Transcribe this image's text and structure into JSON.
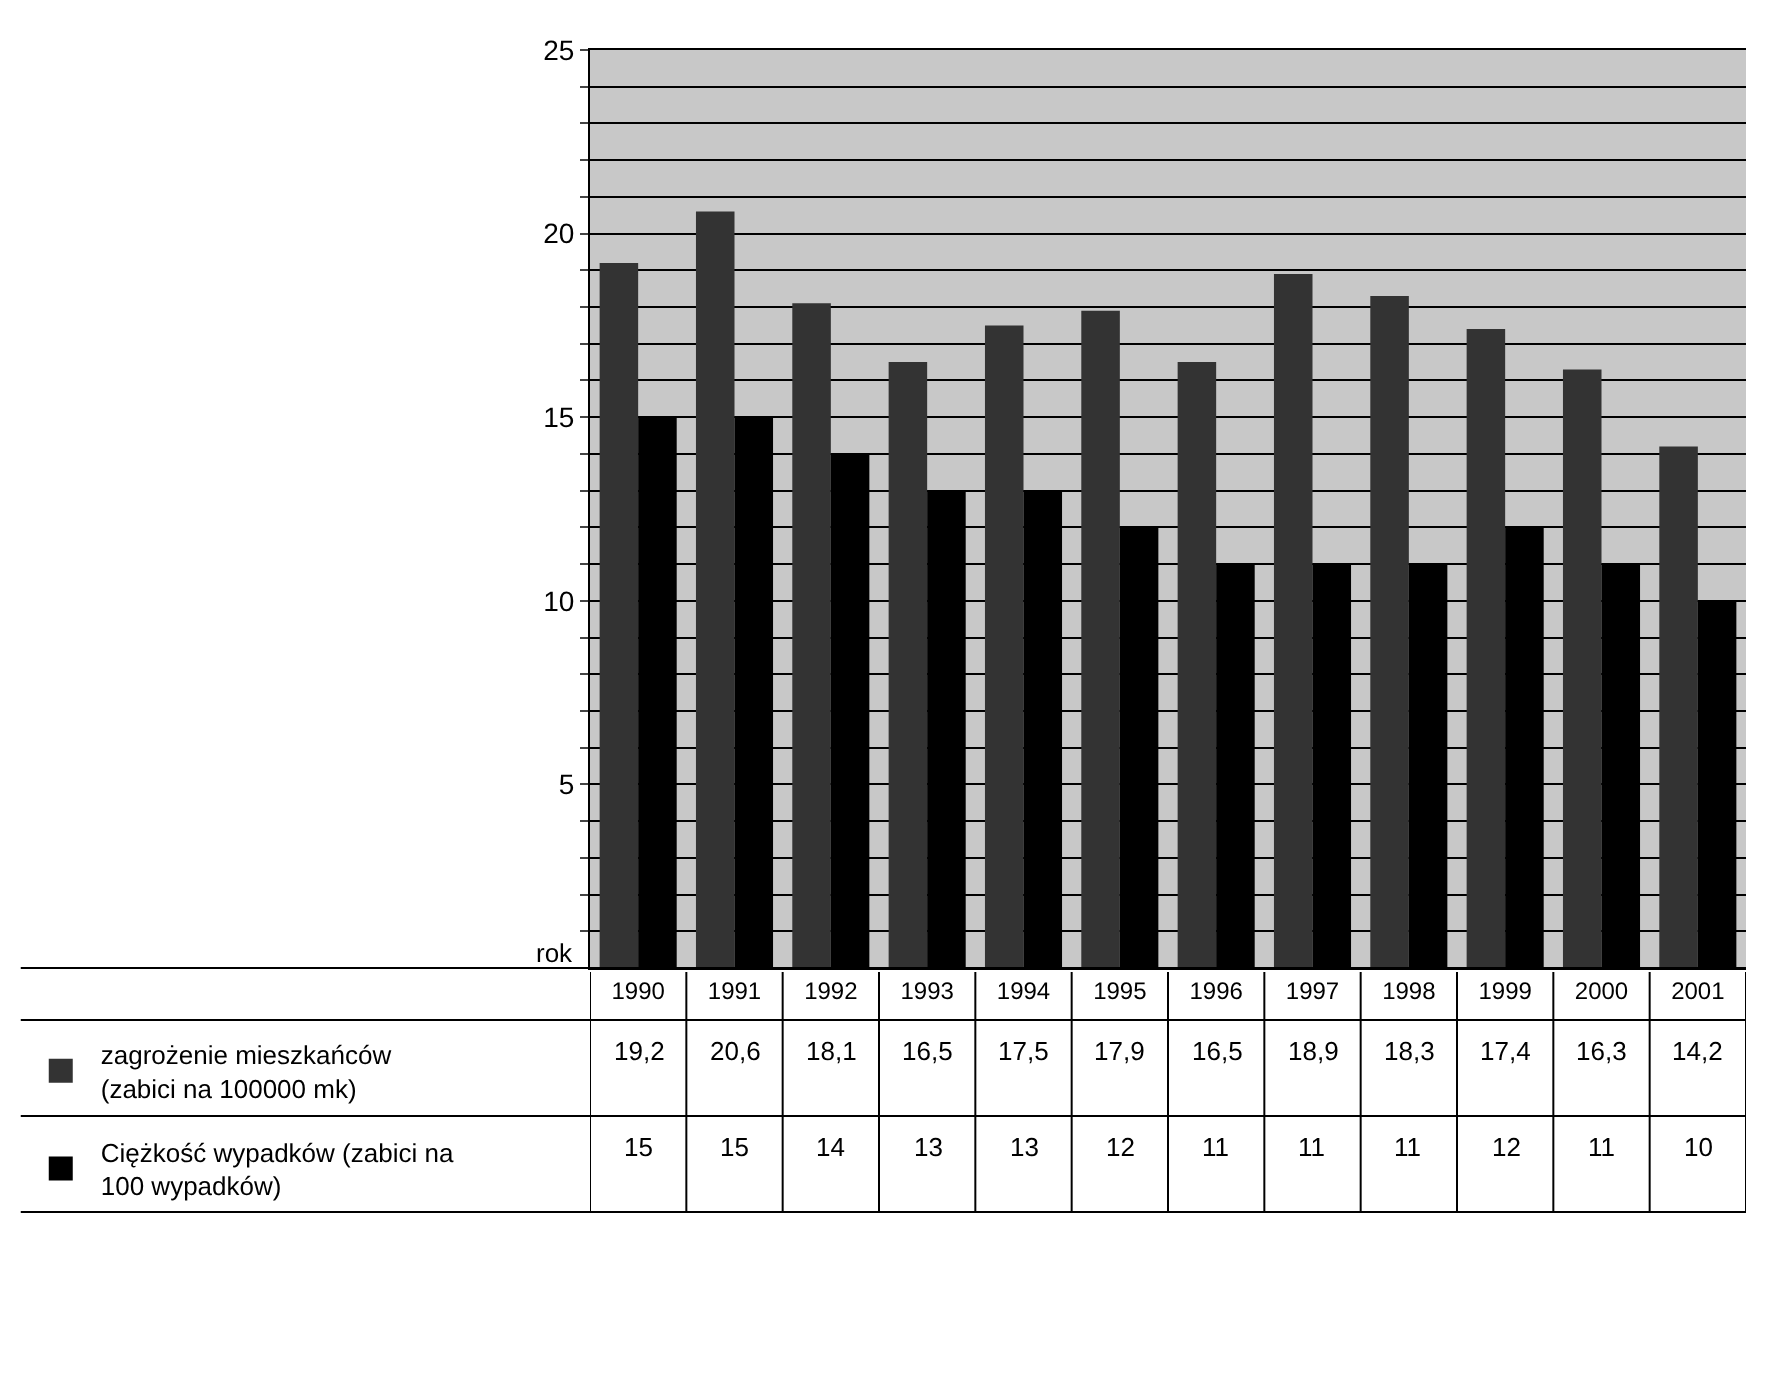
{
  "chart_data": {
    "type": "bar",
    "xlabel": "rok",
    "categories": [
      "1990",
      "1991",
      "1992",
      "1993",
      "1994",
      "1995",
      "1996",
      "1997",
      "1998",
      "1999",
      "2000",
      "2001"
    ],
    "series": [
      {
        "name": "zagrożenie mieszkańców (zabici na 100000 mk)",
        "color": "#333333",
        "values": [
          19.2,
          20.6,
          18.1,
          16.5,
          17.5,
          17.9,
          16.5,
          18.9,
          18.3,
          17.4,
          16.3,
          14.2
        ],
        "value_labels": [
          "19,2",
          "20,6",
          "18,1",
          "16,5",
          "17,5",
          "17,9",
          "16,5",
          "18,9",
          "18,3",
          "17,4",
          "16,3",
          "14,2"
        ]
      },
      {
        "name": "Ciężkość wypadków (zabici na 100 wypadków)",
        "color": "#000000",
        "values": [
          15,
          15,
          14,
          13,
          13,
          12,
          11,
          11,
          11,
          12,
          11,
          10
        ],
        "value_labels": [
          "15",
          "15",
          "14",
          "13",
          "13",
          "12",
          "11",
          "11",
          "11",
          "12",
          "11",
          "10"
        ]
      }
    ],
    "ylim": [
      0,
      25
    ],
    "yticks": [
      {
        "value": 0,
        "label": null
      },
      {
        "value": 1,
        "label": null
      },
      {
        "value": 2,
        "label": null
      },
      {
        "value": 3,
        "label": null
      },
      {
        "value": 4,
        "label": null
      },
      5,
      {
        "value": 6,
        "label": null
      },
      {
        "value": 7,
        "label": null
      },
      {
        "value": 8,
        "label": null
      },
      {
        "value": 9,
        "label": null
      },
      10,
      {
        "value": 11,
        "label": null
      },
      {
        "value": 12,
        "label": null
      },
      {
        "value": 13,
        "label": null
      },
      {
        "value": 14,
        "label": null
      },
      15,
      {
        "value": 16,
        "label": null
      },
      {
        "value": 17,
        "label": null
      },
      {
        "value": 18,
        "label": null
      },
      {
        "value": 19,
        "label": null
      },
      20,
      {
        "value": 21,
        "label": null
      },
      {
        "value": 22,
        "label": null
      },
      {
        "value": 23,
        "label": null
      },
      {
        "value": 24,
        "label": null
      },
      25
    ],
    "grid": "y",
    "legend": "bottom left"
  }
}
